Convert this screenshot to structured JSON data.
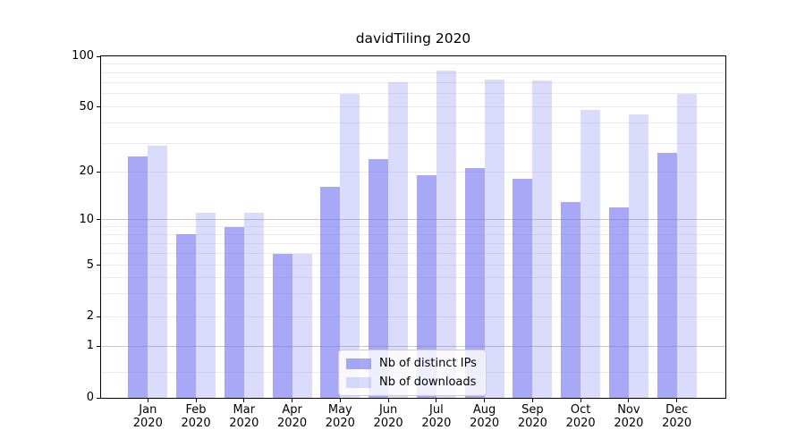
{
  "title": "davidTiling 2020",
  "colors": {
    "bar_base": "#6e6ef0",
    "distinct_ips_fill": "rgba(110,110,240,0.60)",
    "downloads_fill": "rgba(110,110,240,0.25)",
    "grid_major": "#c6c6c6",
    "grid_minor": "#ebebeb",
    "spine": "#000000",
    "legend_border": "#cccccc",
    "legend_background": "rgba(255,255,255,0.8)"
  },
  "legend": {
    "items": [
      {
        "label": "Nb of distinct IPs"
      },
      {
        "label": "Nb of downloads"
      }
    ]
  },
  "chart_data": {
    "type": "bar",
    "title": "davidTiling 2020",
    "categories": [
      {
        "month": "Jan",
        "year": "2020"
      },
      {
        "month": "Feb",
        "year": "2020"
      },
      {
        "month": "Mar",
        "year": "2020"
      },
      {
        "month": "Apr",
        "year": "2020"
      },
      {
        "month": "May",
        "year": "2020"
      },
      {
        "month": "Jun",
        "year": "2020"
      },
      {
        "month": "Jul",
        "year": "2020"
      },
      {
        "month": "Aug",
        "year": "2020"
      },
      {
        "month": "Sep",
        "year": "2020"
      },
      {
        "month": "Oct",
        "year": "2020"
      },
      {
        "month": "Nov",
        "year": "2020"
      },
      {
        "month": "Dec",
        "year": "2020"
      }
    ],
    "series": [
      {
        "name": "Nb of distinct IPs",
        "fill": "rgba(110,110,240,0.60)",
        "values": [
          25,
          8,
          9,
          6,
          16,
          24,
          19,
          21,
          18,
          13,
          12,
          26
        ]
      },
      {
        "name": "Nb of downloads",
        "fill": "rgba(110,110,240,0.25)",
        "values": [
          29,
          11,
          11,
          6,
          60,
          70,
          82,
          73,
          72,
          48,
          45,
          60
        ]
      }
    ],
    "xlabel": "",
    "ylabel": "",
    "yscale": "symlog",
    "ylim": [
      0,
      100
    ],
    "y_ticks": [
      0,
      1,
      2,
      5,
      10,
      20,
      50,
      100
    ],
    "grid_major_values": [
      1,
      10
    ],
    "grid_minor_values": [
      0.5,
      2,
      3,
      4,
      5,
      6,
      7,
      8,
      9,
      20,
      30,
      40,
      50,
      60,
      70,
      80,
      90
    ],
    "grid": "on",
    "legend_position": "lower center"
  }
}
